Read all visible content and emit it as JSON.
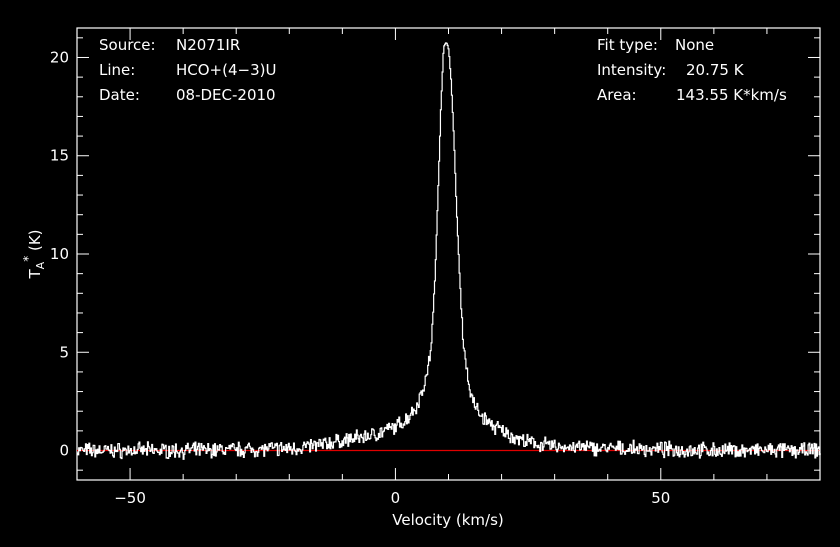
{
  "chart_data": {
    "type": "line",
    "xlabel": "Velocity (km/s)",
    "ylabel": "T",
    "ylabel_sub": "A",
    "ylabel_sup": "*",
    "ylabel_unit": " (K)",
    "xlim": [
      -60,
      80
    ],
    "ylim": [
      -1.5,
      21.5
    ],
    "xticks": [
      -50,
      0,
      50
    ],
    "xtick_labels": [
      "−50",
      "0",
      "50"
    ],
    "yticks": [
      0,
      5,
      10,
      15,
      20
    ],
    "ytick_labels": [
      "0",
      "5",
      "10",
      "15",
      "20"
    ],
    "grid": false,
    "info_left": [
      {
        "label": "Source:",
        "value": "N2071IR"
      },
      {
        "label": "Line:",
        "value": "HCO+(4−3)U"
      },
      {
        "label": "Date:",
        "value": "08-DEC-2010"
      }
    ],
    "info_right": [
      {
        "label": "Fit type:",
        "value": "None"
      },
      {
        "label": "Intensity:",
        "value": "20.75 K"
      },
      {
        "label": "Area:",
        "value": "143.55 K*km/s"
      }
    ],
    "baseline": {
      "y": 0,
      "color": "#e00000"
    },
    "series": [
      {
        "color": "#ffffff",
        "x": [
          -60,
          -50,
          -40,
          -30,
          -20,
          -15,
          -10,
          -6,
          -3,
          0,
          2,
          4,
          5,
          6,
          6.5,
          7,
          7.5,
          8,
          8.5,
          9,
          9.5,
          10,
          10.5,
          11,
          11.5,
          12,
          12.5,
          13,
          14,
          15,
          16,
          18,
          20,
          22,
          25,
          30,
          40,
          50,
          60,
          70,
          80
        ],
        "y": [
          0.0,
          0.0,
          0.0,
          0.05,
          0.1,
          0.25,
          0.5,
          0.7,
          0.9,
          1.2,
          1.6,
          2.3,
          3.1,
          4.0,
          5.0,
          6.6,
          9.5,
          13.5,
          17.5,
          20.5,
          20.75,
          20.4,
          18.5,
          15.5,
          12.0,
          9.0,
          6.5,
          4.8,
          3.0,
          2.2,
          1.8,
          1.3,
          1.0,
          0.7,
          0.4,
          0.2,
          0.1,
          0.05,
          0.0,
          0.0,
          0.0
        ]
      }
    ]
  }
}
